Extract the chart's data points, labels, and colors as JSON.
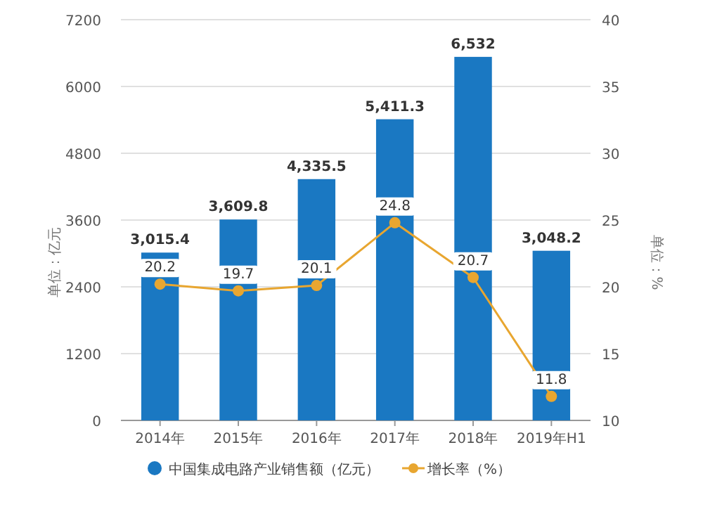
{
  "chart_data": {
    "type": "bar",
    "ylabel": "单位：亿元",
    "y2label": "单位：%",
    "categories": [
      "2014年",
      "2015年",
      "2016年",
      "2017年",
      "2018年",
      "2019年H1"
    ],
    "series": [
      {
        "name": "中国集成电路产业销售额（亿元）",
        "color": "#1a78c2",
        "values": [
          3015.4,
          3609.8,
          4335.5,
          5411.3,
          6532,
          3048.2
        ],
        "value_labels": [
          "3,015.4",
          "3,609.8",
          "4,335.5",
          "5,411.3",
          "6,532",
          "3,048.2"
        ]
      },
      {
        "name": "增长率（%）",
        "type": "line",
        "axis": "y2",
        "color": "#e8a630",
        "marker": "circle",
        "values": [
          20.2,
          19.7,
          20.1,
          24.8,
          20.7,
          11.8
        ],
        "value_labels": [
          "20.2",
          "19.7",
          "20.1",
          "24.8",
          "20.7",
          "11.8"
        ]
      }
    ],
    "ylim": [
      0,
      7200
    ],
    "yticks": [
      0,
      1200,
      2400,
      3600,
      4800,
      6000,
      7200
    ],
    "y2lim": [
      10,
      40
    ],
    "y2ticks": [
      10,
      15,
      20,
      25,
      30,
      35,
      40
    ],
    "grid": "y",
    "legend": "bottom"
  }
}
